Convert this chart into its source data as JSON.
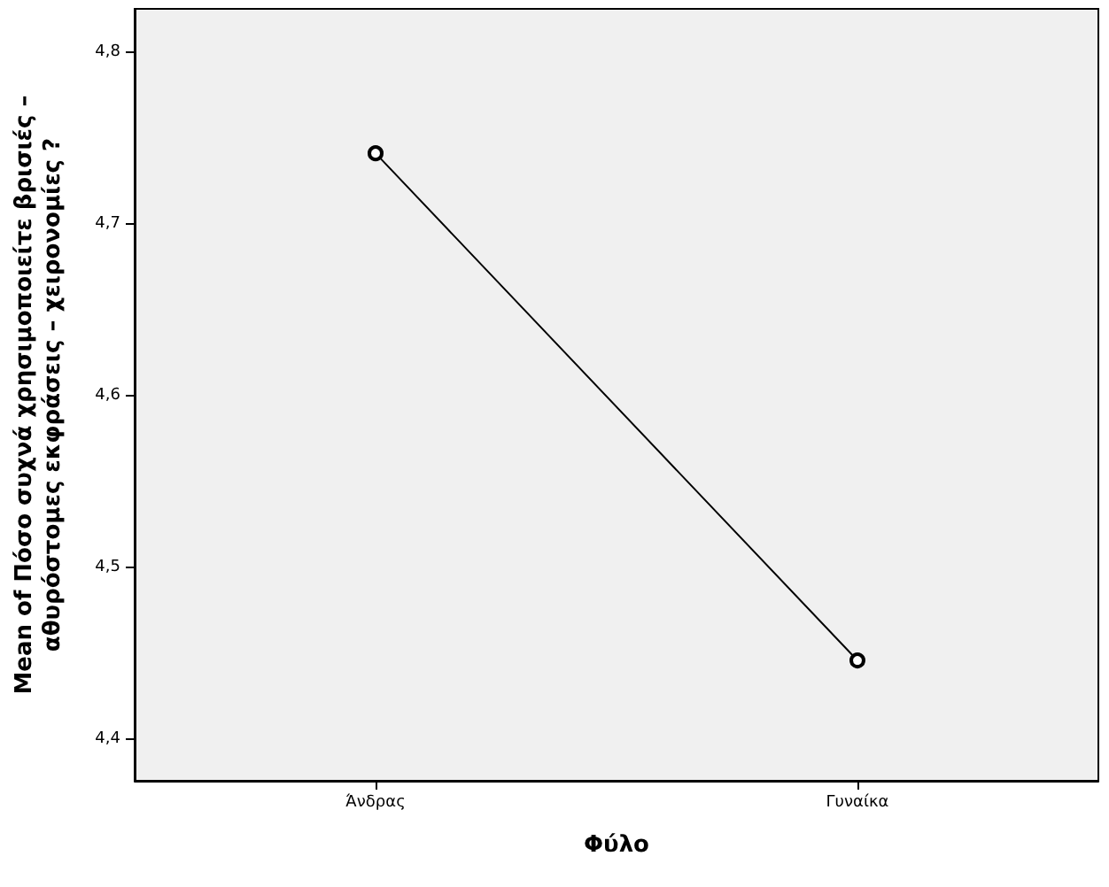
{
  "chart_data": {
    "type": "line",
    "xlabel": "Φύλο",
    "ylabel": "Mean of Πόσο συχνά χρησιμοποιείτε βρισιές – αθυρόστομες εκφράσεις – χειρονομίες ?",
    "categories": [
      "Άνδρας",
      "Γυναίκα"
    ],
    "series": [
      {
        "color": "#000000",
        "values": [
          4.741,
          4.446
        ]
      }
    ],
    "ylim": [
      4.376,
      4.825
    ],
    "yticks": [
      {
        "value": 4.4,
        "label": "4,4"
      },
      {
        "value": 4.5,
        "label": "4,5"
      },
      {
        "value": 4.6,
        "label": "4,6"
      },
      {
        "value": 4.7,
        "label": "4,7"
      },
      {
        "value": 4.8,
        "label": "4,8"
      }
    ],
    "grid": false,
    "marker": "circle",
    "line_style": "solid"
  }
}
